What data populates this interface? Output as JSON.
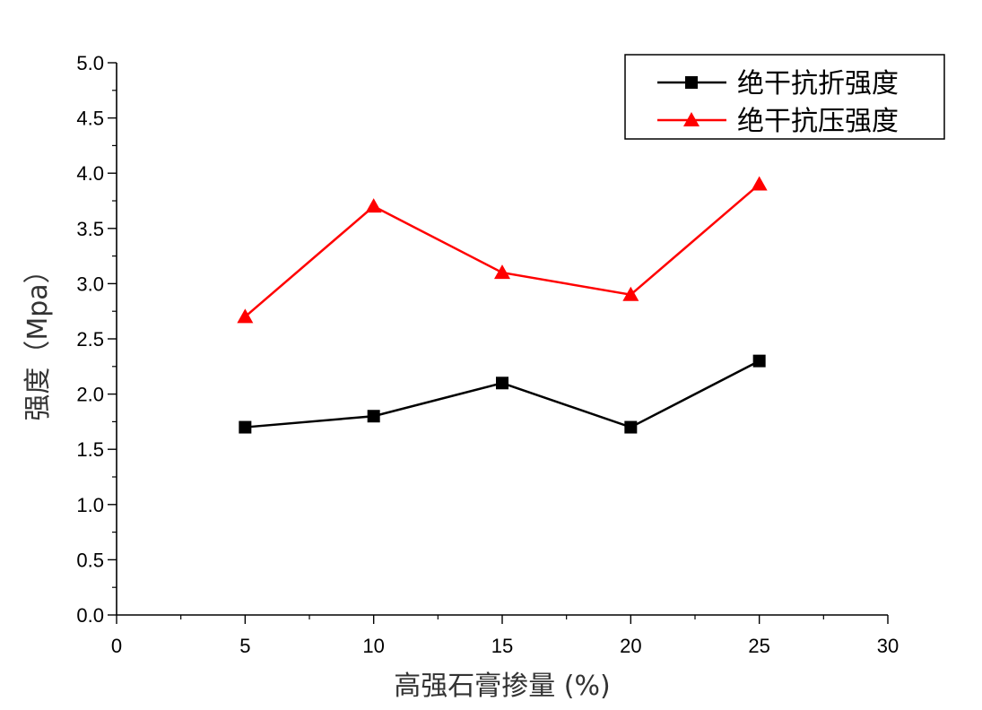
{
  "chart_data": {
    "type": "line",
    "title": "",
    "xlabel": "高强石膏掺量 (%)",
    "ylabel": "强度（Mpa）",
    "xlim": [
      0,
      30
    ],
    "ylim": [
      0,
      5
    ],
    "xticks": [
      "0",
      "5",
      "10",
      "15",
      "20",
      "25",
      "30"
    ],
    "yticks": [
      "0.0",
      "0.5",
      "1.0",
      "1.5",
      "2.0",
      "2.5",
      "3.0",
      "3.5",
      "4.0",
      "4.5",
      "5.0"
    ],
    "grid": false,
    "legend_position": "top-right",
    "x": [
      5,
      10,
      15,
      20,
      25
    ],
    "series": [
      {
        "name": "绝干抗折强度",
        "values": [
          1.7,
          1.8,
          2.1,
          1.7,
          2.3
        ],
        "color": "#000000",
        "marker": "square"
      },
      {
        "name": "绝干抗压强度",
        "values": [
          2.7,
          3.7,
          3.1,
          2.9,
          3.9
        ],
        "color": "#ff0000",
        "marker": "triangle"
      }
    ]
  }
}
